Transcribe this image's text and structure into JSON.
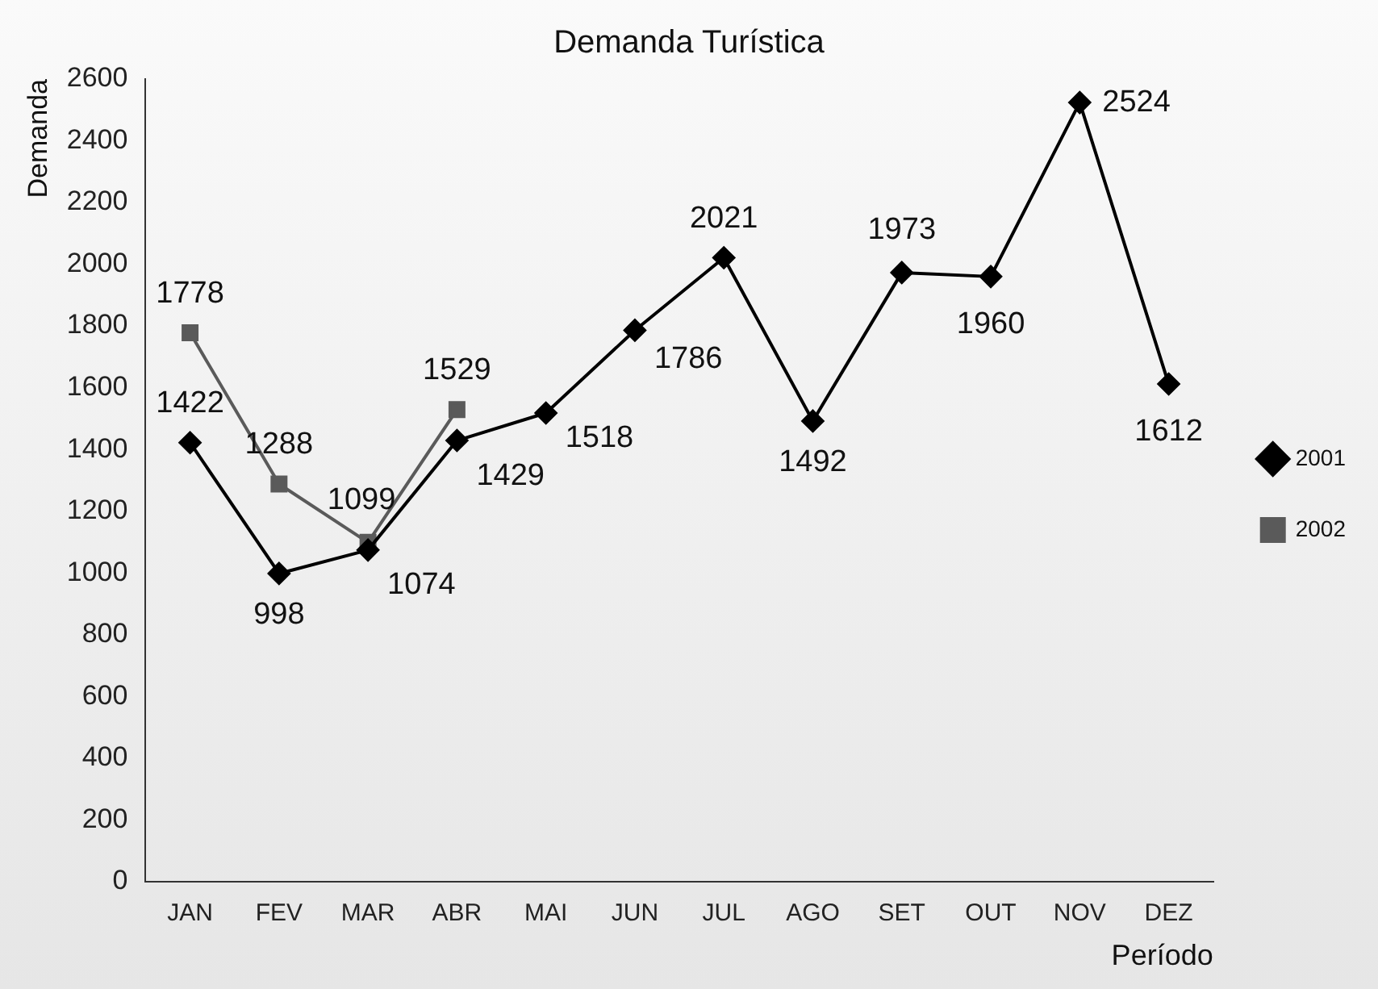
{
  "chart_data": {
    "type": "line",
    "title": "Demanda Turística",
    "xlabel": "Período",
    "ylabel": "Demanda",
    "categories": [
      "JAN",
      "FEV",
      "MAR",
      "ABR",
      "MAI",
      "JUN",
      "JUL",
      "AGO",
      "SET",
      "OUT",
      "NOV",
      "DEZ"
    ],
    "series": [
      {
        "name": "2001",
        "color": "#000000",
        "marker": "diamond",
        "values": [
          1422,
          998,
          1074,
          1429,
          1518,
          1786,
          2021,
          1492,
          1973,
          1960,
          2524,
          1612
        ]
      },
      {
        "name": "2002",
        "color": "#5a5a5a",
        "marker": "square",
        "values": [
          1778,
          1288,
          1099,
          1529,
          null,
          null,
          null,
          null,
          null,
          null,
          null,
          null
        ]
      }
    ],
    "ylim": [
      0,
      2600
    ],
    "yticks": [
      0,
      200,
      400,
      600,
      800,
      1000,
      1200,
      1400,
      1600,
      1800,
      2000,
      2200,
      2400,
      2600
    ],
    "grid": false,
    "legend": "right",
    "data_labels": true,
    "line_style": "solid"
  }
}
